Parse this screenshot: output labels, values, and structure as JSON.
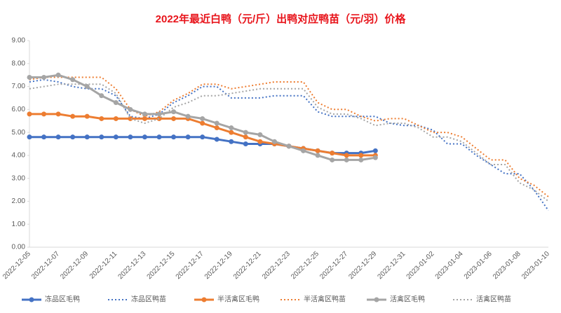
{
  "chart_data": {
    "type": "line",
    "title": "2022年最近白鸭（元/斤）出鸭对应鸭苗（元/羽）价格",
    "categories": [
      "2022-12-05",
      null,
      "2022-12-07",
      null,
      "2022-12-09",
      null,
      "2022-12-11",
      null,
      "2022-12-13",
      null,
      "2022-12-15",
      null,
      "2022-12-17",
      null,
      "2022-12-19",
      null,
      "2022-12-21",
      null,
      "2022-12-23",
      null,
      "2022-12-25",
      null,
      "2022-12-27",
      null,
      "2022-12-29",
      null,
      "2022-12-31",
      null,
      "2023-01-02",
      null,
      "2023-01-04",
      null,
      "2023-01-06",
      null,
      "2023-01-08",
      null,
      "2023-01-10"
    ],
    "series": [
      {
        "name": "冻品区毛鸭",
        "color": "#4472c4",
        "dash": false,
        "values": [
          4.8,
          4.8,
          4.8,
          4.8,
          4.8,
          4.8,
          4.8,
          4.8,
          4.8,
          4.8,
          4.8,
          4.8,
          4.8,
          4.7,
          4.6,
          4.5,
          4.5,
          4.5,
          4.4,
          4.3,
          4.2,
          4.1,
          4.1,
          4.1,
          4.2,
          null,
          null,
          null,
          null,
          null,
          null,
          null,
          null,
          null,
          null,
          null,
          null
        ]
      },
      {
        "name": "冻品区鸭苗",
        "color": "#4472c4",
        "dash": true,
        "values": [
          7.2,
          7.3,
          7.2,
          7.0,
          6.9,
          6.9,
          6.6,
          5.7,
          5.6,
          5.8,
          6.3,
          6.6,
          7.0,
          7.0,
          6.5,
          6.5,
          6.5,
          6.6,
          6.6,
          6.6,
          5.9,
          5.7,
          5.7,
          5.7,
          5.7,
          5.4,
          5.3,
          5.3,
          5.1,
          4.5,
          4.5,
          4.0,
          3.6,
          3.2,
          3.2,
          2.5,
          1.6
        ]
      },
      {
        "name": "半活禽区毛鸭",
        "color": "#ed7d31",
        "dash": false,
        "values": [
          5.8,
          5.8,
          5.8,
          5.7,
          5.7,
          5.6,
          5.6,
          5.6,
          5.6,
          5.6,
          5.6,
          5.6,
          5.4,
          5.2,
          5.0,
          4.8,
          4.6,
          4.5,
          4.4,
          4.3,
          4.2,
          4.1,
          4.0,
          4.0,
          4.0,
          null,
          null,
          null,
          null,
          null,
          null,
          null,
          null,
          null,
          null,
          null,
          null
        ]
      },
      {
        "name": "半活禽区鸭苗",
        "color": "#ed7d31",
        "dash": true,
        "values": [
          7.3,
          7.4,
          7.4,
          7.4,
          7.4,
          7.4,
          6.9,
          6.0,
          5.7,
          5.9,
          6.4,
          6.7,
          7.1,
          7.1,
          6.9,
          7.0,
          7.1,
          7.2,
          7.2,
          7.2,
          6.3,
          6.0,
          6.0,
          5.7,
          5.5,
          5.6,
          5.6,
          5.3,
          5.0,
          5.0,
          4.8,
          4.3,
          3.8,
          3.8,
          3.0,
          2.7,
          2.2
        ]
      },
      {
        "name": "活禽区毛鸭",
        "color": "#a5a5a5",
        "dash": false,
        "values": [
          7.4,
          7.4,
          7.5,
          7.3,
          7.0,
          6.6,
          6.3,
          6.0,
          5.8,
          5.8,
          5.9,
          5.7,
          5.6,
          5.4,
          5.2,
          5.0,
          4.9,
          4.6,
          4.4,
          4.2,
          4.0,
          3.8,
          3.8,
          3.8,
          3.9,
          null,
          null,
          null,
          null,
          null,
          null,
          null,
          null,
          null,
          null,
          null,
          null
        ]
      },
      {
        "name": "活禽区鸭苗",
        "color": "#a5a5a5",
        "dash": true,
        "values": [
          6.9,
          7.0,
          7.1,
          7.1,
          7.1,
          7.1,
          6.7,
          5.6,
          5.4,
          5.6,
          6.1,
          6.3,
          6.6,
          6.6,
          6.7,
          6.8,
          6.9,
          6.9,
          6.9,
          6.9,
          6.1,
          5.8,
          5.8,
          5.6,
          5.3,
          5.4,
          5.4,
          5.2,
          4.8,
          4.8,
          4.6,
          4.1,
          3.6,
          3.6,
          2.8,
          2.5,
          2.0
        ]
      }
    ],
    "ylim": [
      0,
      9
    ],
    "yticks": [
      {
        "value": 0,
        "label": "0.00"
      },
      {
        "value": 1,
        "label": "1.00"
      },
      {
        "value": 2,
        "label": "2.00"
      },
      {
        "value": 3,
        "label": "3.00"
      },
      {
        "value": 4,
        "label": "4.00"
      },
      {
        "value": 5,
        "label": "5.00"
      },
      {
        "value": 6,
        "label": "6.00"
      },
      {
        "value": 7,
        "label": "7.00"
      },
      {
        "value": 8,
        "label": "8.00"
      },
      {
        "value": 9,
        "label": "9.00"
      }
    ],
    "grid": false,
    "legend": "bottom"
  }
}
